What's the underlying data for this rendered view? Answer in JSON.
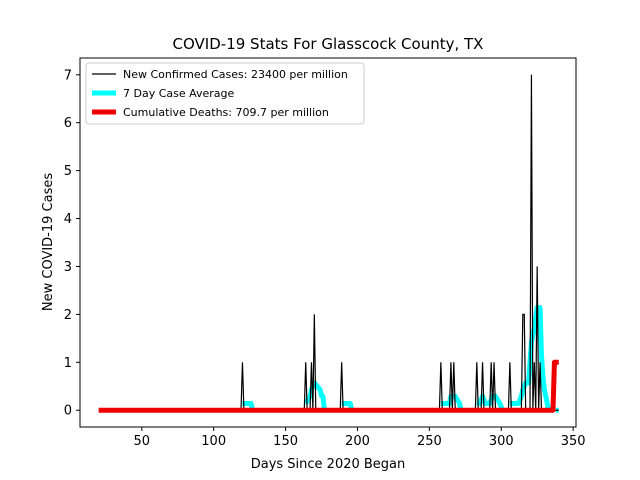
{
  "chart_data": {
    "type": "line",
    "title": "COVID-19 Stats For Glasscock County, TX",
    "xlabel": "Days Since 2020 Began",
    "ylabel": "New COVID-19 Cases",
    "xlim": [
      7,
      352
    ],
    "ylim": [
      -0.35,
      7.35
    ],
    "x_ticks": [
      50,
      100,
      150,
      200,
      250,
      300,
      350
    ],
    "y_ticks": [
      0,
      1,
      2,
      3,
      4,
      5,
      6,
      7
    ],
    "grid": false,
    "legend_position": "top-left",
    "series": [
      {
        "name": "New Confirmed Cases: 23400 per million",
        "color": "#000000",
        "points": [
          [
            20,
            0
          ],
          [
            119,
            0
          ],
          [
            120,
            1
          ],
          [
            121,
            0
          ],
          [
            163,
            0
          ],
          [
            164,
            1
          ],
          [
            165,
            0
          ],
          [
            167,
            0
          ],
          [
            168,
            1
          ],
          [
            169,
            0
          ],
          [
            170,
            2
          ],
          [
            171,
            0
          ],
          [
            188,
            0
          ],
          [
            189,
            1
          ],
          [
            190,
            0
          ],
          [
            257,
            0
          ],
          [
            258,
            1
          ],
          [
            259,
            0
          ],
          [
            264,
            0
          ],
          [
            265,
            1
          ],
          [
            266,
            0
          ],
          [
            267,
            1
          ],
          [
            268,
            0
          ],
          [
            282,
            0
          ],
          [
            283,
            1
          ],
          [
            284,
            0
          ],
          [
            286,
            0
          ],
          [
            287,
            1
          ],
          [
            288,
            0
          ],
          [
            292,
            0
          ],
          [
            293,
            1
          ],
          [
            294,
            0
          ],
          [
            295,
            1
          ],
          [
            296,
            0
          ],
          [
            305,
            0
          ],
          [
            306,
            1
          ],
          [
            307,
            0
          ],
          [
            314,
            0
          ],
          [
            315,
            2
          ],
          [
            316,
            2
          ],
          [
            317,
            0
          ],
          [
            320,
            0
          ],
          [
            321,
            7
          ],
          [
            322,
            0
          ],
          [
            323,
            1
          ],
          [
            324,
            0
          ],
          [
            325,
            3
          ],
          [
            326,
            0
          ],
          [
            327,
            1
          ],
          [
            328,
            0
          ],
          [
            340,
            0
          ]
        ]
      },
      {
        "name": "7 Day Case Average",
        "color": "#00ffff",
        "segments": [
          [
            [
              120,
              0.14
            ],
            [
              126,
              0.14
            ],
            [
              127,
              0
            ]
          ],
          [
            [
              164,
              0.14
            ],
            [
              167,
              0.29
            ],
            [
              168,
              0.43
            ],
            [
              170,
              0.57
            ],
            [
              172,
              0.5
            ],
            [
              174,
              0.43
            ],
            [
              175,
              0.3
            ],
            [
              176,
              0.29
            ],
            [
              177,
              0
            ]
          ],
          [
            [
              189,
              0.14
            ],
            [
              195,
              0.14
            ],
            [
              196,
              0
            ]
          ],
          [
            [
              258,
              0.14
            ],
            [
              264,
              0.14
            ],
            [
              265,
              0.29
            ],
            [
              268,
              0.29
            ],
            [
              271,
              0.14
            ],
            [
              272,
              0
            ]
          ],
          [
            [
              283,
              0.14
            ],
            [
              285,
              0.14
            ],
            [
              287,
              0.29
            ],
            [
              289,
              0.14
            ],
            [
              292,
              0.14
            ],
            [
              294,
              0.29
            ],
            [
              296,
              0.29
            ],
            [
              299,
              0.14
            ],
            [
              301,
              0
            ]
          ],
          [
            [
              306,
              0.14
            ],
            [
              312,
              0.14
            ],
            [
              314,
              0.29
            ],
            [
              315,
              0.43
            ],
            [
              317,
              0.57
            ],
            [
              319,
              0.57
            ],
            [
              321,
              1.43
            ],
            [
              323,
              1.71
            ],
            [
              325,
              2.14
            ],
            [
              327,
              2.14
            ],
            [
              328,
              1.14
            ],
            [
              329,
              0.71
            ],
            [
              330,
              0.43
            ],
            [
              331,
              0.29
            ],
            [
              332,
              0.14
            ],
            [
              333,
              0
            ]
          ],
          [
            [
              338,
              0
            ],
            [
              340,
              0
            ]
          ]
        ]
      },
      {
        "name": "Cumulative Deaths: 709.7 per million",
        "color": "#ee0000",
        "points": [
          [
            20,
            0
          ],
          [
            335,
            0
          ],
          [
            336,
            0
          ],
          [
            337,
            1
          ],
          [
            340,
            1
          ]
        ]
      }
    ]
  }
}
